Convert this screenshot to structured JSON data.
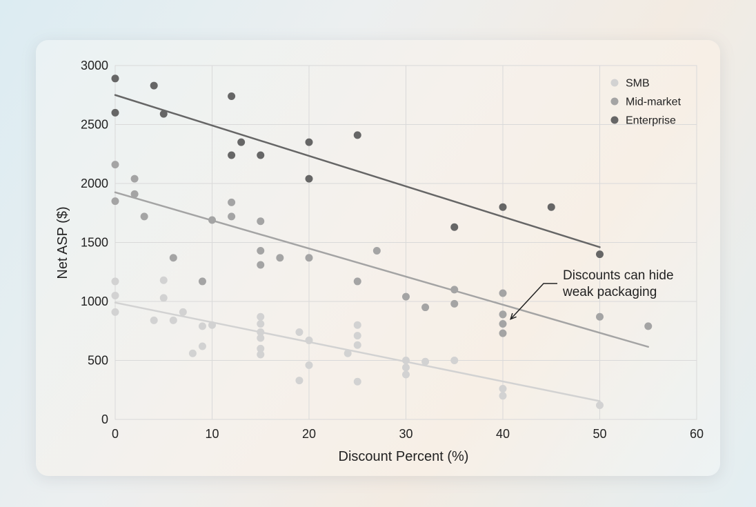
{
  "chart_data": {
    "type": "scatter",
    "xlabel": "Discount Percent (%)",
    "ylabel": "Net ASP ($)",
    "xlim": [
      0,
      60
    ],
    "ylim": [
      0,
      3000
    ],
    "xticks": [
      0,
      10,
      20,
      30,
      40,
      50,
      60
    ],
    "yticks": [
      0,
      500,
      1000,
      1500,
      2000,
      2500,
      3000
    ],
    "grid": true,
    "legend_position": "top-right",
    "series": [
      {
        "name": "SMB",
        "color": "#d2d2d2",
        "points": [
          [
            0,
            1170
          ],
          [
            0,
            1050
          ],
          [
            0,
            910
          ],
          [
            4,
            840
          ],
          [
            5,
            1180
          ],
          [
            5,
            1030
          ],
          [
            6,
            840
          ],
          [
            7,
            910
          ],
          [
            8,
            560
          ],
          [
            9,
            790
          ],
          [
            9,
            620
          ],
          [
            10,
            800
          ],
          [
            15,
            870
          ],
          [
            15,
            810
          ],
          [
            15,
            740
          ],
          [
            15,
            690
          ],
          [
            15,
            600
          ],
          [
            15,
            550
          ],
          [
            19,
            740
          ],
          [
            19,
            330
          ],
          [
            20,
            670
          ],
          [
            20,
            460
          ],
          [
            24,
            560
          ],
          [
            25,
            800
          ],
          [
            25,
            710
          ],
          [
            25,
            630
          ],
          [
            25,
            320
          ],
          [
            30,
            500
          ],
          [
            30,
            440
          ],
          [
            30,
            380
          ],
          [
            32,
            490
          ],
          [
            35,
            500
          ],
          [
            40,
            260
          ],
          [
            40,
            200
          ],
          [
            50,
            120
          ]
        ],
        "trend": [
          [
            0,
            990
          ],
          [
            50,
            155
          ]
        ]
      },
      {
        "name": "Mid-market",
        "color": "#a4a4a4",
        "points": [
          [
            0,
            2160
          ],
          [
            0,
            1850
          ],
          [
            2,
            2040
          ],
          [
            2,
            1910
          ],
          [
            3,
            1720
          ],
          [
            6,
            1370
          ],
          [
            9,
            1170
          ],
          [
            10,
            1690
          ],
          [
            12,
            1840
          ],
          [
            12,
            1720
          ],
          [
            15,
            1680
          ],
          [
            15,
            1430
          ],
          [
            15,
            1310
          ],
          [
            17,
            1370
          ],
          [
            20,
            1370
          ],
          [
            25,
            1170
          ],
          [
            27,
            1430
          ],
          [
            30,
            1040
          ],
          [
            32,
            950
          ],
          [
            35,
            1100
          ],
          [
            35,
            980
          ],
          [
            40,
            1070
          ],
          [
            40,
            890
          ],
          [
            40,
            810
          ],
          [
            40,
            730
          ],
          [
            50,
            870
          ],
          [
            55,
            790
          ]
        ],
        "trend": [
          [
            0,
            1925
          ],
          [
            55,
            615
          ]
        ]
      },
      {
        "name": "Enterprise",
        "color": "#666666",
        "points": [
          [
            0,
            2890
          ],
          [
            0,
            2600
          ],
          [
            4,
            2830
          ],
          [
            5,
            2590
          ],
          [
            12,
            2740
          ],
          [
            12,
            2240
          ],
          [
            13,
            2350
          ],
          [
            15,
            2240
          ],
          [
            20,
            2350
          ],
          [
            20,
            2040
          ],
          [
            25,
            2410
          ],
          [
            35,
            1630
          ],
          [
            40,
            1800
          ],
          [
            45,
            1800
          ],
          [
            50,
            1400
          ]
        ],
        "trend": [
          [
            0,
            2750
          ],
          [
            50,
            1460
          ]
        ]
      }
    ],
    "annotation": {
      "lines": [
        "Discounts can hide",
        "weak packaging"
      ],
      "target": [
        40.8,
        850
      ]
    }
  }
}
